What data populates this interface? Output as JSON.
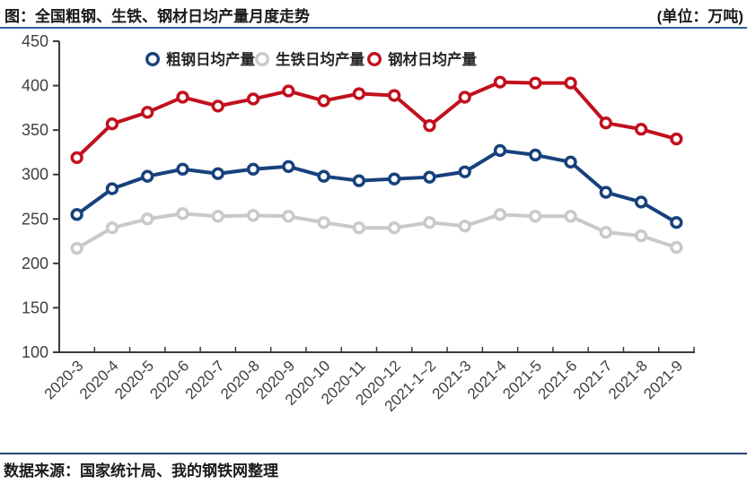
{
  "header": {
    "title": "图：全国粗钢、生铁、钢材日均产量月度走势",
    "unit": "(单位：万吨)"
  },
  "footer": {
    "source": "数据来源：国家统计局、我的钢铁网整理"
  },
  "colors": {
    "divider_top": "#2e5e9e",
    "divider_bottom": "#27466f",
    "axis": "#3a3a3a",
    "tick_label": "#3f3f3f",
    "legend_text": "#262626",
    "crude_steel": "#17417c",
    "pig_iron": "#c9c9c9",
    "steel_products": "#c1101e"
  },
  "chart_data": {
    "type": "line",
    "title": "全国粗钢、生铁、钢材日均产量月度走势",
    "unit": "万吨",
    "xlabel": "",
    "ylabel": "",
    "ylim": [
      100,
      450
    ],
    "ytick_step": 50,
    "grid": false,
    "legend_position": "top",
    "marker": "open-circle",
    "categories": [
      "2020-3",
      "2020-4",
      "2020-5",
      "2020-6",
      "2020-7",
      "2020-8",
      "2020-9",
      "2020-10",
      "2020-11",
      "2020-12",
      "2021-1~2",
      "2021-3",
      "2021-4",
      "2021-5",
      "2021-6",
      "2021-7",
      "2021-8",
      "2021-9"
    ],
    "series": [
      {
        "name": "粗钢日均产量",
        "key": "crude-steel",
        "color": "#17417c",
        "values": [
          255,
          284,
          298,
          306,
          301,
          306,
          309,
          298,
          293,
          295,
          297,
          303,
          327,
          322,
          314,
          280,
          269,
          246
        ]
      },
      {
        "name": "生铁日均产量",
        "key": "pig-iron",
        "color": "#c9c9c9",
        "values": [
          217,
          240,
          250,
          256,
          253,
          254,
          253,
          246,
          240,
          240,
          246,
          242,
          255,
          253,
          253,
          235,
          231,
          218
        ]
      },
      {
        "name": "钢材日均产量",
        "key": "steel-products",
        "color": "#c1101e",
        "values": [
          319,
          357,
          370,
          387,
          377,
          385,
          394,
          383,
          391,
          389,
          355,
          387,
          404,
          403,
          403,
          358,
          351,
          340
        ]
      }
    ]
  }
}
